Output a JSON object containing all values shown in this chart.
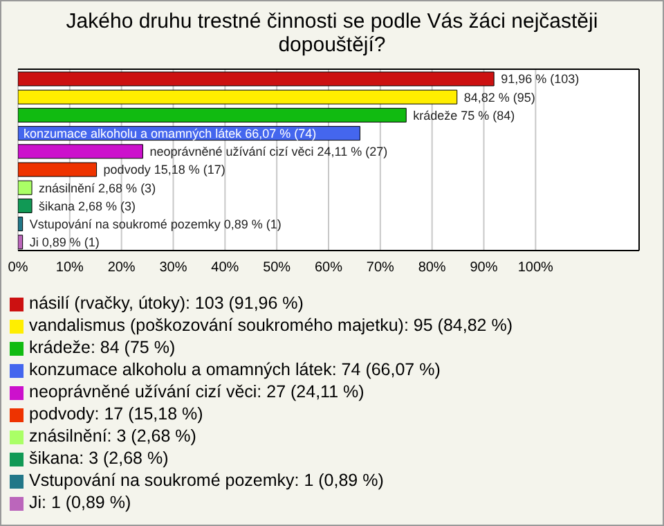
{
  "chart_data": {
    "type": "bar",
    "orientation": "horizontal",
    "stacked": true,
    "title": "Jakého druhu trestné činnosti se podle Vás žáci nejčastěji dopouštějí?",
    "categories": [
      null,
      null,
      null,
      null,
      null,
      null,
      null,
      null,
      null,
      null
    ],
    "series": [
      {
        "name": "násilí (rvačky, útoky): 103 (91,96 %)",
        "color": "#cc1111",
        "values": [
          91.96,
          null,
          null,
          null,
          null,
          null,
          null,
          null,
          null,
          null
        ],
        "value_labels": [
          "91,96 % (103)",
          null,
          null,
          null,
          null,
          null,
          null,
          null,
          null,
          null
        ]
      },
      {
        "name": "vandalismus (poškozování soukromého majetku): 95 (84,82 %)",
        "color": "#ffee00",
        "values": [
          null,
          84.82,
          null,
          null,
          null,
          null,
          null,
          null,
          null,
          null
        ],
        "value_labels": [
          null,
          "84,82 % (95)",
          null,
          null,
          null,
          null,
          null,
          null,
          null,
          null
        ]
      },
      {
        "name": "krádeže: 84 (75 %)",
        "color": "#11bb11",
        "values": [
          null,
          null,
          75,
          null,
          null,
          null,
          null,
          null,
          null,
          null
        ],
        "value_labels": [
          null,
          null,
          "krádeže 75 % (84)",
          null,
          null,
          null,
          null,
          null,
          null,
          null
        ]
      },
      {
        "name": "konzumace alkoholu a omamných látek: 74 (66,07 %)",
        "color": "#4466ee",
        "values": [
          null,
          null,
          null,
          66.07,
          null,
          null,
          null,
          null,
          null,
          null
        ],
        "value_labels": [
          null,
          null,
          null,
          "konzumace alkoholu a omamných látek 66,07 % (74)",
          null,
          null,
          null,
          null,
          null,
          null
        ]
      },
      {
        "name": "neoprávněné užívání cizí věci: 27 (24,11 %)",
        "color": "#cc11cc",
        "values": [
          null,
          null,
          null,
          null,
          24.11,
          null,
          null,
          null,
          null,
          null
        ],
        "value_labels": [
          null,
          null,
          null,
          null,
          "neoprávněné užívání cizí věci 24,11 % (27)",
          null,
          null,
          null,
          null,
          null
        ]
      },
      {
        "name": "podvody: 17 (15,18 %)",
        "color": "#ee3300",
        "values": [
          null,
          null,
          null,
          null,
          null,
          15.18,
          null,
          null,
          null,
          null
        ],
        "value_labels": [
          null,
          null,
          null,
          null,
          null,
          "podvody 15,18 % (17)",
          null,
          null,
          null,
          null
        ]
      },
      {
        "name": "znásilnění: 3 (2,68 %)",
        "color": "#aaff66",
        "values": [
          null,
          null,
          null,
          null,
          null,
          null,
          2.68,
          null,
          null,
          null
        ],
        "value_labels": [
          null,
          null,
          null,
          null,
          null,
          null,
          "znásilnění 2,68 % (3)",
          null,
          null,
          null
        ]
      },
      {
        "name": "šikana: 3 (2,68 %)",
        "color": "#119955",
        "values": [
          null,
          null,
          null,
          null,
          null,
          null,
          null,
          2.68,
          null,
          null
        ],
        "value_labels": [
          null,
          null,
          null,
          null,
          null,
          null,
          null,
          "šikana 2,68 % (3)",
          null,
          null
        ]
      },
      {
        "name": "Vstupování na soukromé pozemky: 1 (0,89 %)",
        "color": "#227788",
        "values": [
          null,
          null,
          null,
          null,
          null,
          null,
          null,
          null,
          0.89,
          null
        ],
        "value_labels": [
          null,
          null,
          null,
          null,
          null,
          null,
          null,
          null,
          "Vstupování na soukromé pozemky 0,89 % (1)",
          null
        ]
      },
      {
        "name": "Ji: 1 (0,89 %)",
        "color": "#bb66bb",
        "values": [
          null,
          null,
          null,
          null,
          null,
          null,
          null,
          null,
          null,
          0.89
        ],
        "value_labels": [
          null,
          null,
          null,
          null,
          null,
          null,
          null,
          null,
          null,
          "Ji 0,89 % (1)"
        ]
      }
    ],
    "xlim": [
      0,
      120
    ],
    "xticks": [
      {
        "value": 0,
        "label": "0%"
      },
      {
        "value": 10,
        "label": "10%"
      },
      {
        "value": 20,
        "label": "20%"
      },
      {
        "value": 30,
        "label": "30%"
      },
      {
        "value": 40,
        "label": "40%"
      },
      {
        "value": 50,
        "label": "50%"
      },
      {
        "value": 60,
        "label": "60%"
      },
      {
        "value": 70,
        "label": "70%"
      },
      {
        "value": 80,
        "label": "80%"
      },
      {
        "value": 90,
        "label": "90%"
      },
      {
        "value": 100,
        "label": "100%"
      }
    ],
    "grid": "x",
    "legend": "bottom",
    "tick_labels": "x"
  }
}
